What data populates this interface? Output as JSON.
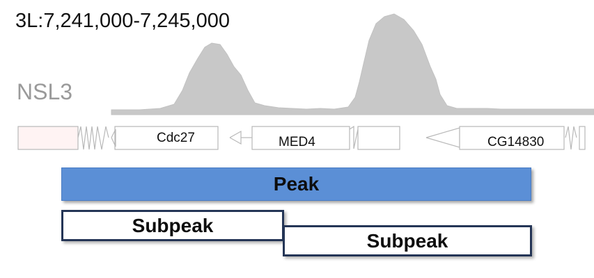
{
  "region": "3L:7,241,000-7,245,000",
  "track_label": "NSL3",
  "genes": [
    {
      "label": "Cdc27"
    },
    {
      "label": "MED4"
    },
    {
      "label": "CG14830"
    }
  ],
  "peak_label": "Peak",
  "subpeaks": [
    {
      "label": "Subpeak"
    },
    {
      "label": "Subpeak"
    }
  ],
  "colors": {
    "signal": "#c8c8c8",
    "peak_fill": "#5b8fd6",
    "subpeak_border": "#243556",
    "gene_outline": "#b0b0b0"
  }
}
